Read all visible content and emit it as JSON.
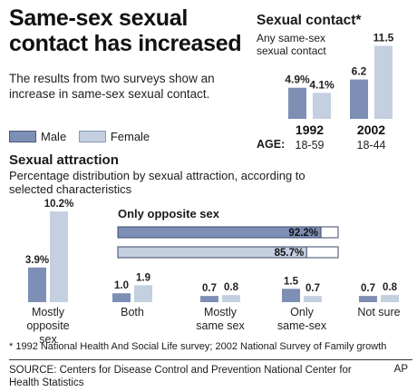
{
  "title": "Same-sex sexual contact has increased",
  "intro": "The results from two surveys show an increase in same-sex sexual contact.",
  "legend": {
    "male": "Male",
    "female": "Female"
  },
  "colors": {
    "male": "#7d8fb4",
    "female": "#c4cfe0",
    "outline": "#3a4868"
  },
  "contact": {
    "title": "Sexual contact*",
    "subtitle": "Any same-sex sexual contact",
    "age_label": "AGE:"
  },
  "attraction": {
    "title": "Sexual attraction",
    "subtitle": "Percentage distribution by sexual attraction, according to selected characteristics",
    "opposite_title": "Only opposite sex"
  },
  "footnote": "* 1992 National Health And Social Life survey; 2002 National Survey of Family growth",
  "source": "SOURCE: Centers for Disease Control and Prevention National Center for Health Statistics",
  "credit": "AP",
  "chart_data": [
    {
      "type": "bar",
      "title": "Sexual contact*",
      "categories": [
        "1992",
        "2002"
      ],
      "age_ranges": [
        "18-59",
        "18-44"
      ],
      "series": [
        {
          "name": "Male",
          "values": [
            4.9,
            6.2
          ],
          "labels": [
            "4.9%",
            "6.2"
          ]
        },
        {
          "name": "Female",
          "values": [
            4.1,
            11.5
          ],
          "labels": [
            "4.1%",
            "11.5"
          ]
        }
      ],
      "ylim": [
        0,
        12
      ]
    },
    {
      "type": "bar",
      "title": "Sexual attraction",
      "categories": [
        "Mostly opposite sex",
        "Both",
        "Mostly same sex",
        "Only same-sex",
        "Not sure"
      ],
      "series": [
        {
          "name": "Male",
          "values": [
            3.9,
            1.0,
            0.7,
            1.5,
            0.7
          ],
          "labels": [
            "3.9%",
            "1.0",
            "0.7",
            "1.5",
            "0.7"
          ]
        },
        {
          "name": "Female",
          "values": [
            10.2,
            1.9,
            0.8,
            0.7,
            0.8
          ],
          "labels": [
            "10.2%",
            "1.9",
            "0.8",
            "0.7",
            "0.8"
          ]
        }
      ],
      "ylim": [
        0,
        11
      ]
    },
    {
      "type": "bar",
      "orientation": "horizontal",
      "title": "Only opposite sex",
      "series": [
        {
          "name": "Male",
          "values": [
            92.2
          ],
          "labels": [
            "92.2%"
          ]
        },
        {
          "name": "Female",
          "values": [
            85.7
          ],
          "labels": [
            "85.7%"
          ]
        }
      ],
      "xlim": [
        0,
        100
      ]
    }
  ]
}
